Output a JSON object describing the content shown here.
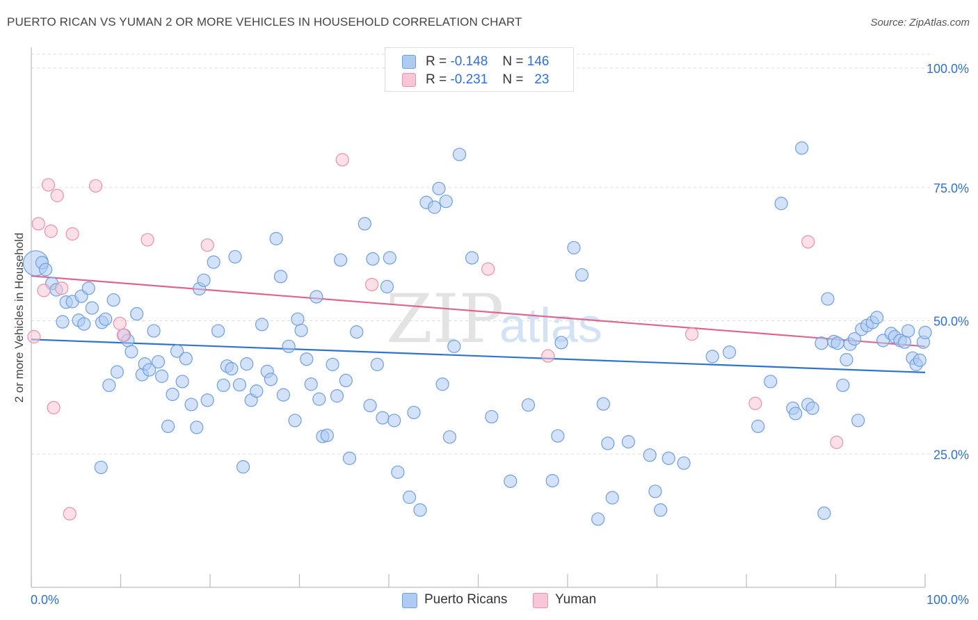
{
  "title": "PUERTO RICAN VS YUMAN 2 OR MORE VEHICLES IN HOUSEHOLD CORRELATION CHART",
  "source": "Source: ZipAtlas.com",
  "watermark": {
    "part1": "ZIP",
    "part2": "atlas"
  },
  "legend": {
    "rows": [
      {
        "r_label": "R =",
        "r_value": "-0.148",
        "n_label": "N =",
        "n_value": "146"
      },
      {
        "r_label": "R =",
        "r_value": "-0.231",
        "n_label": "N =",
        "n_value": "23"
      }
    ]
  },
  "bottom_legend": {
    "series1": "Puerto Ricans",
    "series2": "Yuman"
  },
  "colors": {
    "blue_fill": "#aecbf2",
    "blue_stroke": "#6d9fe0",
    "blue_line": "#2f72d0",
    "pink_fill": "#f8c6d6",
    "pink_stroke": "#ea8fae",
    "pink_line": "#e0648f",
    "tick_label": "#2f6fd1",
    "grid": "#dedede"
  },
  "chart_data": {
    "type": "scatter",
    "ylabel": "2 or more Vehicles in Household",
    "xlim": [
      0,
      100
    ],
    "ylim": [
      0,
      100
    ],
    "x_tick_labels": [
      "0.0%",
      "100.0%"
    ],
    "y_ticks": [
      25,
      50,
      75,
      100
    ],
    "y_tick_labels": [
      "25.0%",
      "50.0%",
      "75.0%",
      "100.0%"
    ],
    "grid": true,
    "legend_position": "top-center",
    "series": [
      {
        "name": "Puerto Ricans",
        "color": "#aecbf2",
        "trend": {
          "x": [
            0,
            100
          ],
          "y": [
            46.5,
            40.3
          ]
        },
        "points": [
          [
            0.5,
            60.8
          ],
          [
            1.2,
            60.9
          ],
          [
            1.6,
            59.6
          ],
          [
            2.3,
            57.0
          ],
          [
            2.8,
            55.8
          ],
          [
            3.5,
            49.8
          ],
          [
            3.9,
            53.5
          ],
          [
            4.6,
            53.6
          ],
          [
            5.3,
            50.1
          ],
          [
            5.6,
            54.6
          ],
          [
            5.9,
            49.4
          ],
          [
            6.4,
            56.1
          ],
          [
            6.8,
            52.4
          ],
          [
            7.8,
            22.5
          ],
          [
            7.9,
            49.7
          ],
          [
            8.3,
            50.3
          ],
          [
            8.7,
            37.9
          ],
          [
            9.2,
            53.9
          ],
          [
            9.6,
            40.4
          ],
          [
            10.4,
            47.3
          ],
          [
            10.8,
            46.3
          ],
          [
            11.2,
            44.2
          ],
          [
            11.8,
            51.3
          ],
          [
            12.4,
            39.9
          ],
          [
            12.7,
            41.9
          ],
          [
            13.2,
            40.8
          ],
          [
            13.7,
            48.1
          ],
          [
            14.2,
            42.3
          ],
          [
            14.6,
            39.6
          ],
          [
            15.3,
            30.2
          ],
          [
            15.8,
            36.2
          ],
          [
            16.3,
            44.3
          ],
          [
            16.9,
            38.6
          ],
          [
            17.3,
            42.9
          ],
          [
            17.9,
            34.3
          ],
          [
            18.5,
            30.0
          ],
          [
            18.8,
            56.0
          ],
          [
            19.3,
            57.6
          ],
          [
            19.7,
            35.1
          ],
          [
            20.4,
            61.0
          ],
          [
            20.9,
            48.1
          ],
          [
            21.5,
            37.9
          ],
          [
            21.9,
            41.5
          ],
          [
            22.4,
            41.0
          ],
          [
            22.8,
            62.0
          ],
          [
            23.3,
            38.0
          ],
          [
            23.7,
            22.6
          ],
          [
            24.1,
            41.9
          ],
          [
            24.6,
            35.1
          ],
          [
            25.2,
            36.8
          ],
          [
            25.8,
            49.3
          ],
          [
            26.4,
            40.5
          ],
          [
            26.8,
            39.0
          ],
          [
            27.4,
            65.4
          ],
          [
            27.9,
            58.3
          ],
          [
            28.2,
            36.1
          ],
          [
            28.8,
            45.2
          ],
          [
            29.5,
            31.3
          ],
          [
            29.8,
            50.3
          ],
          [
            30.2,
            48.2
          ],
          [
            30.8,
            42.8
          ],
          [
            31.3,
            38.1
          ],
          [
            31.9,
            54.5
          ],
          [
            32.2,
            35.3
          ],
          [
            32.6,
            28.3
          ],
          [
            33.1,
            28.5
          ],
          [
            33.7,
            41.8
          ],
          [
            34.2,
            35.9
          ],
          [
            34.6,
            61.4
          ],
          [
            35.2,
            38.8
          ],
          [
            35.6,
            24.2
          ],
          [
            36.4,
            47.9
          ],
          [
            37.3,
            68.2
          ],
          [
            37.9,
            34.1
          ],
          [
            38.2,
            61.6
          ],
          [
            38.7,
            41.8
          ],
          [
            39.3,
            31.8
          ],
          [
            39.8,
            56.4
          ],
          [
            40.1,
            61.8
          ],
          [
            40.6,
            31.3
          ],
          [
            41.0,
            21.6
          ],
          [
            42.3,
            16.9
          ],
          [
            42.8,
            32.8
          ],
          [
            43.5,
            14.5
          ],
          [
            44.2,
            72.2
          ],
          [
            45.1,
            71.3
          ],
          [
            45.6,
            74.8
          ],
          [
            46.0,
            38.1
          ],
          [
            46.4,
            72.4
          ],
          [
            46.8,
            28.2
          ],
          [
            47.3,
            45.2
          ],
          [
            47.9,
            81.2
          ],
          [
            49.3,
            61.8
          ],
          [
            51.5,
            32.0
          ],
          [
            53.6,
            19.9
          ],
          [
            55.6,
            34.2
          ],
          [
            58.3,
            20.0
          ],
          [
            58.9,
            28.4
          ],
          [
            59.3,
            45.9
          ],
          [
            60.7,
            63.7
          ],
          [
            61.6,
            58.6
          ],
          [
            63.4,
            12.8
          ],
          [
            64.0,
            34.4
          ],
          [
            64.5,
            27.0
          ],
          [
            65.0,
            16.8
          ],
          [
            66.8,
            27.3
          ],
          [
            69.2,
            24.8
          ],
          [
            69.8,
            18.0
          ],
          [
            70.4,
            14.5
          ],
          [
            71.3,
            24.2
          ],
          [
            73.0,
            23.3
          ],
          [
            76.2,
            43.3
          ],
          [
            78.1,
            44.1
          ],
          [
            81.3,
            30.2
          ],
          [
            82.7,
            38.6
          ],
          [
            83.9,
            72.0
          ],
          [
            85.2,
            33.6
          ],
          [
            85.5,
            32.6
          ],
          [
            86.2,
            82.4
          ],
          [
            86.9,
            34.3
          ],
          [
            87.4,
            33.6
          ],
          [
            88.4,
            45.8
          ],
          [
            88.7,
            13.9
          ],
          [
            89.1,
            54.1
          ],
          [
            89.8,
            46.1
          ],
          [
            90.2,
            45.8
          ],
          [
            90.8,
            37.9
          ],
          [
            91.2,
            42.7
          ],
          [
            91.6,
            45.6
          ],
          [
            92.1,
            46.6
          ],
          [
            92.5,
            31.3
          ],
          [
            92.9,
            48.4
          ],
          [
            93.5,
            49.1
          ],
          [
            94.1,
            49.7
          ],
          [
            94.6,
            50.6
          ],
          [
            95.3,
            46.3
          ],
          [
            96.2,
            47.6
          ],
          [
            96.6,
            47.0
          ],
          [
            97.2,
            46.3
          ],
          [
            97.7,
            46.0
          ],
          [
            98.1,
            48.1
          ],
          [
            98.6,
            43.0
          ],
          [
            99.0,
            41.8
          ],
          [
            99.4,
            42.6
          ],
          [
            99.8,
            46.0
          ],
          [
            100.0,
            47.8
          ]
        ]
      },
      {
        "name": "Yuman",
        "color": "#f8c6d6",
        "trend": {
          "x": [
            0,
            100
          ],
          "y": [
            58.4,
            45.2
          ]
        },
        "points": [
          [
            0.3,
            47.0
          ],
          [
            0.8,
            68.2
          ],
          [
            1.4,
            55.7
          ],
          [
            1.9,
            75.5
          ],
          [
            2.2,
            66.8
          ],
          [
            2.5,
            33.7
          ],
          [
            2.9,
            73.5
          ],
          [
            3.4,
            56.1
          ],
          [
            4.3,
            13.8
          ],
          [
            4.6,
            66.3
          ],
          [
            7.2,
            75.3
          ],
          [
            9.9,
            49.5
          ],
          [
            10.3,
            47.3
          ],
          [
            13.0,
            65.2
          ],
          [
            19.7,
            64.2
          ],
          [
            34.8,
            80.2
          ],
          [
            38.1,
            56.8
          ],
          [
            51.1,
            59.7
          ],
          [
            57.8,
            43.4
          ],
          [
            73.9,
            47.5
          ],
          [
            81.0,
            34.5
          ],
          [
            86.9,
            64.8
          ],
          [
            90.1,
            27.2
          ]
        ]
      }
    ]
  }
}
